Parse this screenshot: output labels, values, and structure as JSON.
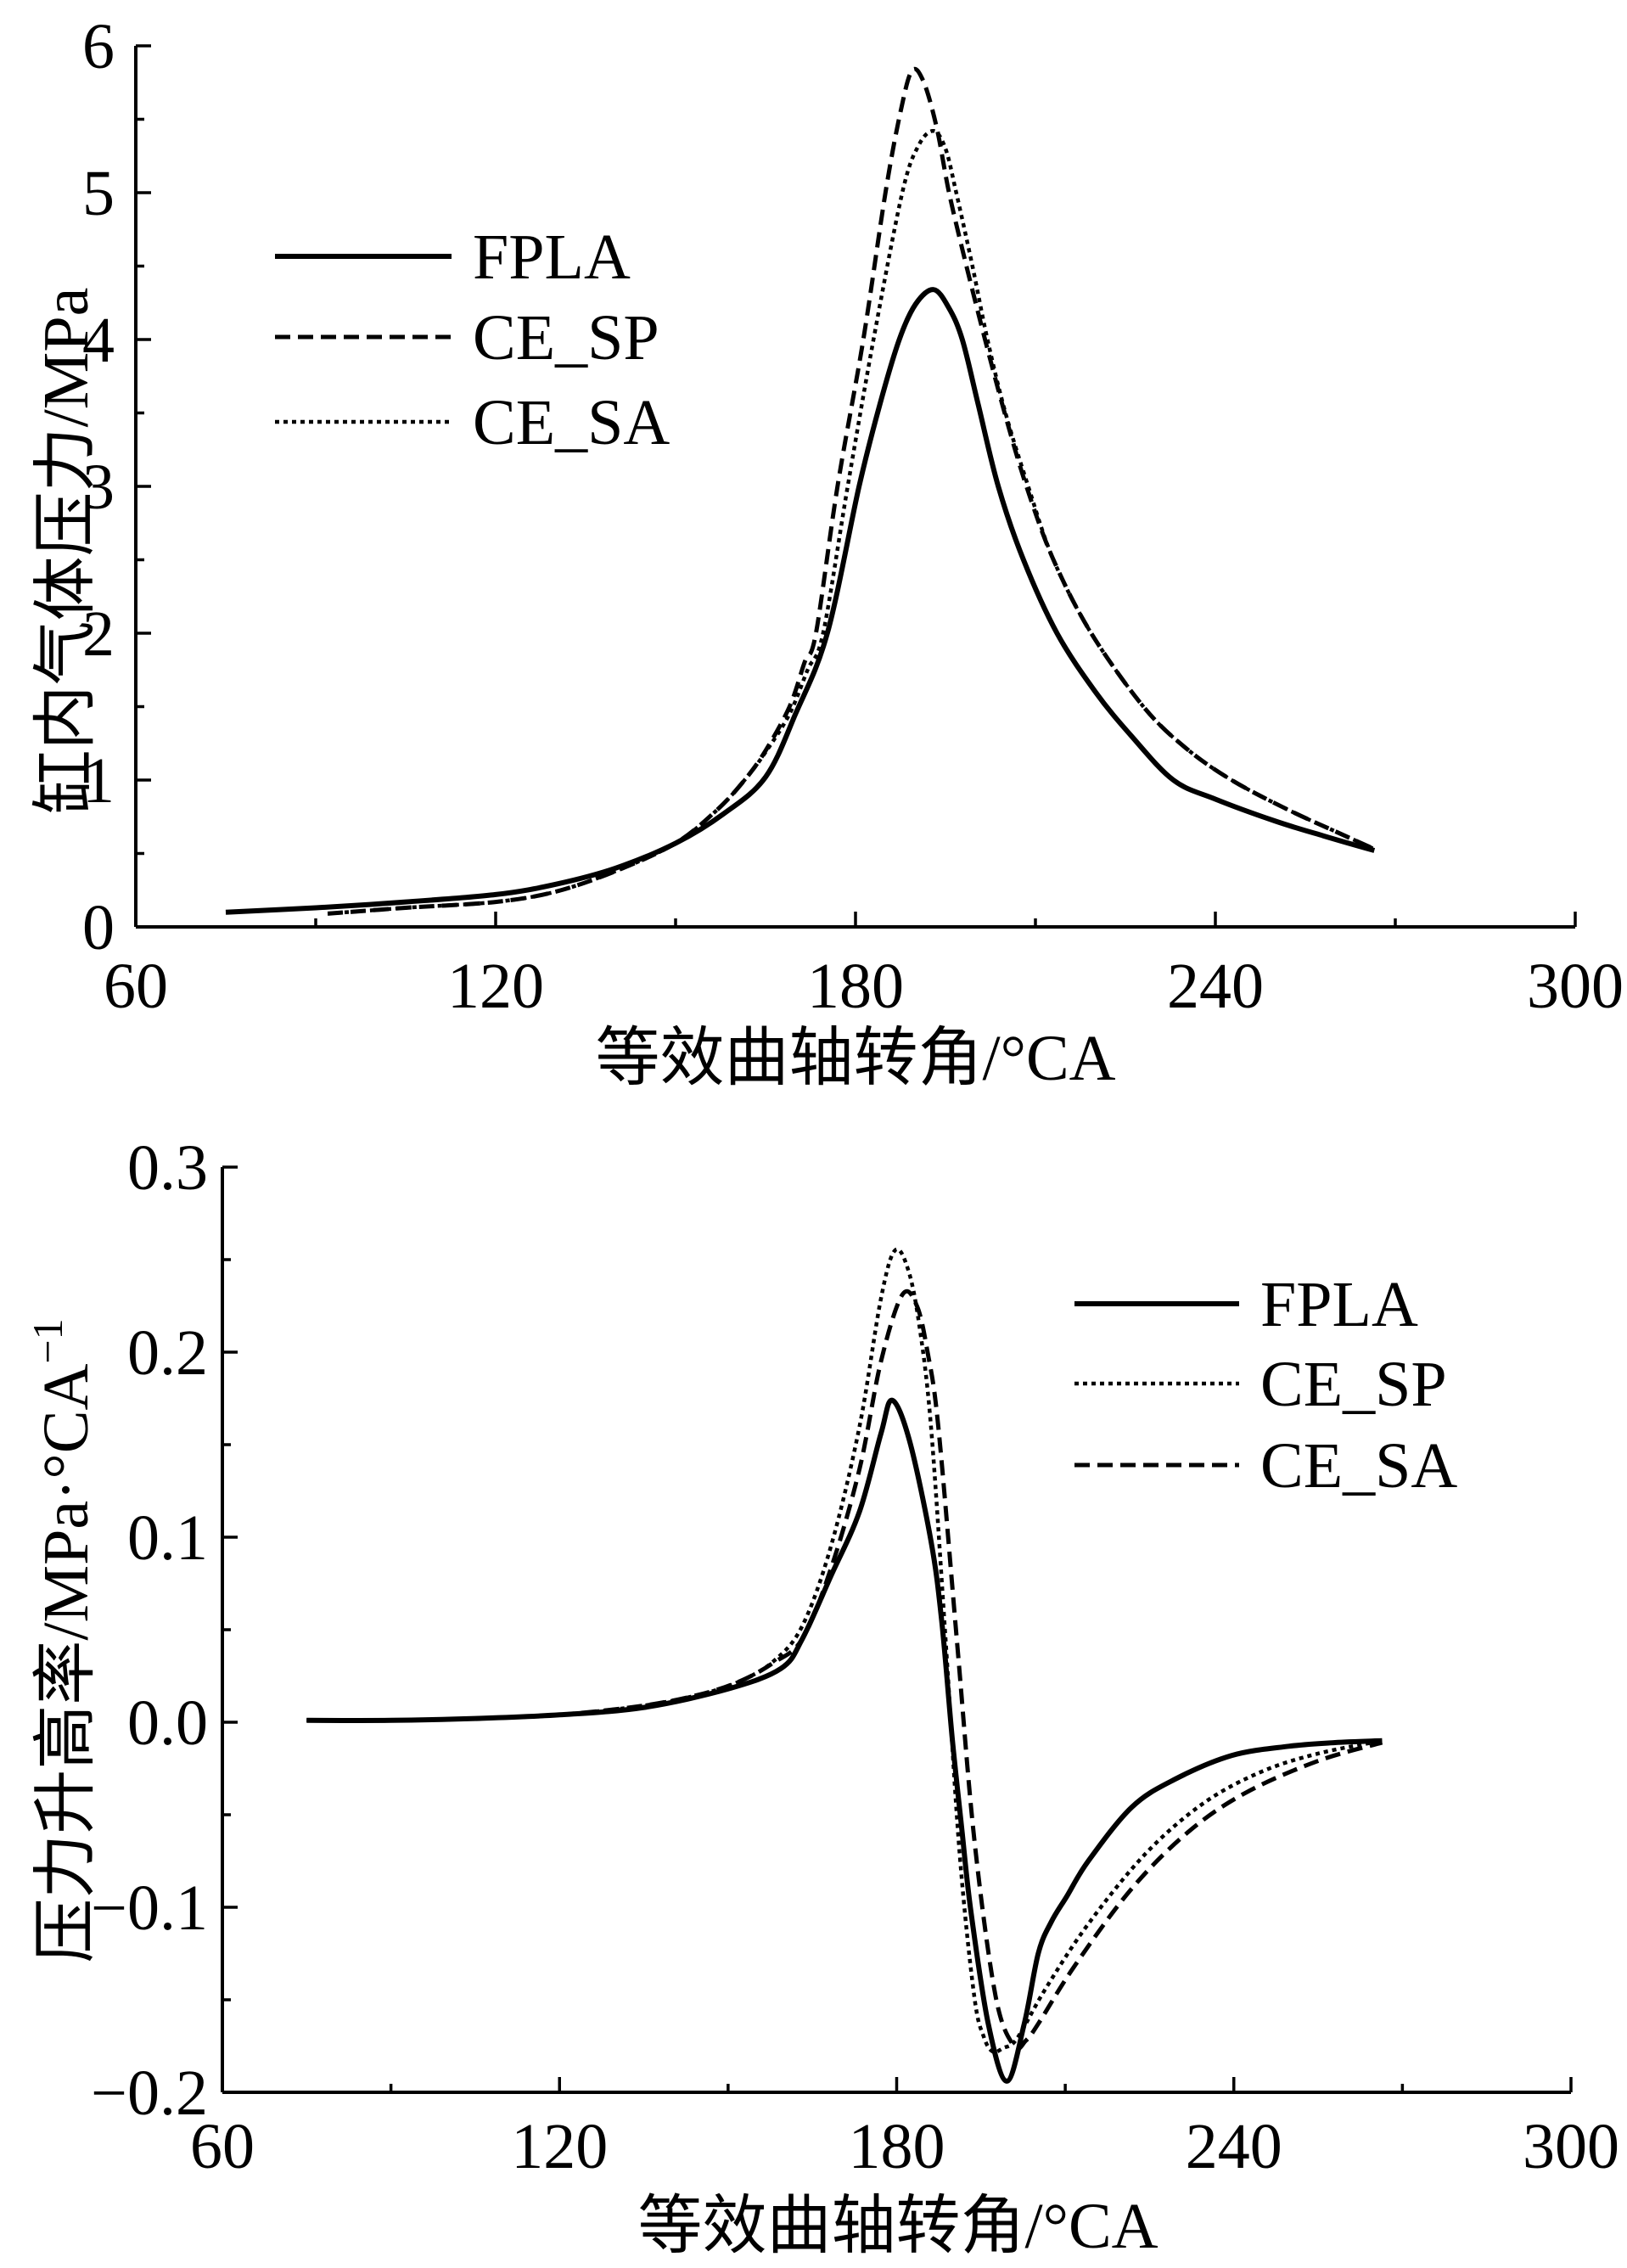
{
  "chart_data": [
    {
      "type": "line",
      "xlabel": "等效曲轴转角/°CA",
      "ylabel": "缸内气体压力/MPa",
      "xlim": [
        60,
        300
      ],
      "ylim": [
        0,
        6
      ],
      "xticks": [
        60,
        120,
        180,
        240,
        300
      ],
      "xtick_labels": [
        "60",
        "120",
        "180",
        "240",
        "300"
      ],
      "yticks": [
        0,
        1,
        2,
        3,
        4,
        5,
        6
      ],
      "ytick_labels": [
        "0",
        "1",
        "2",
        "3",
        "4",
        "5",
        "6"
      ],
      "grid": false,
      "legend": "upper-left",
      "series": [
        {
          "name": "FPLA",
          "style": "solid",
          "color": "#000000",
          "x": [
            75,
            90,
            105,
            120,
            130,
            140,
            150,
            158,
            165,
            170,
            175.3,
            180.6,
            184,
            187.3,
            190,
            193,
            195.5,
            197.8,
            200.5,
            203.8,
            208,
            213.6,
            220,
            226,
            233,
            240,
            250,
            258,
            266.5
          ],
          "y": [
            0.1,
            0.13,
            0.17,
            0.22,
            0.29,
            0.4,
            0.57,
            0.77,
            1.02,
            1.45,
            2.0,
            3.0,
            3.55,
            4.0,
            4.24,
            4.34,
            4.22,
            4.0,
            3.55,
            3.0,
            2.5,
            2.0,
            1.6,
            1.3,
            1.0,
            0.87,
            0.72,
            0.62,
            0.52
          ]
        },
        {
          "name": "CE_SP",
          "style": "dashed",
          "color": "#000000",
          "x": [
            92,
            105,
            120,
            130,
            140,
            150,
            157,
            161.5,
            165,
            169,
            171.5,
            173.4,
            177,
            181.3,
            185,
            187.5,
            189.4,
            191.3,
            193.5,
            195.6,
            198.5,
            201.6,
            205,
            208.5,
            213,
            219.3,
            228,
            235,
            242.7,
            252,
            260,
            266.5
          ],
          "y": [
            0.09,
            0.13,
            0.17,
            0.24,
            0.38,
            0.57,
            0.8,
            1.0,
            1.2,
            1.5,
            1.8,
            2.0,
            3.0,
            4.0,
            5.0,
            5.55,
            5.83,
            5.76,
            5.45,
            5.0,
            4.5,
            4.0,
            3.48,
            3.0,
            2.5,
            2.0,
            1.5,
            1.22,
            1.0,
            0.8,
            0.65,
            0.53
          ]
        },
        {
          "name": "CE_SA",
          "style": "dotted",
          "color": "#000000",
          "x": [
            92,
            105,
            120,
            130,
            140,
            150,
            157,
            161.5,
            165,
            169,
            172,
            174.6,
            178.7,
            183,
            187.8,
            190.5,
            193,
            195,
            196.8,
            199.5,
            202,
            205,
            208.8,
            213,
            219.3,
            228,
            235,
            242.7,
            252,
            260,
            266.5
          ],
          "y": [
            0.09,
            0.13,
            0.17,
            0.24,
            0.38,
            0.57,
            0.8,
            1.0,
            1.19,
            1.45,
            1.75,
            2.0,
            3.0,
            4.0,
            5.0,
            5.32,
            5.42,
            5.3,
            5.0,
            4.5,
            4.0,
            3.5,
            3.0,
            2.5,
            2.0,
            1.5,
            1.22,
            1.0,
            0.8,
            0.65,
            0.53
          ]
        }
      ]
    },
    {
      "type": "line",
      "xlabel": "等效曲轴转角/°CA",
      "ylabel": "压力升高率/MPa·°CA",
      "ylabel_superscript": "−1",
      "xlim": [
        60,
        300
      ],
      "ylim": [
        -0.2,
        0.3
      ],
      "xticks": [
        60,
        120,
        180,
        240,
        300
      ],
      "xtick_labels": [
        "60",
        "120",
        "180",
        "240",
        "300"
      ],
      "yticks": [
        -0.2,
        -0.1,
        0.0,
        0.1,
        0.2,
        0.3
      ],
      "ytick_labels": [
        "−0.2",
        "−0.1",
        "0.0",
        "0.1",
        "0.2",
        "0.3"
      ],
      "grid": false,
      "legend": "upper-right",
      "series": [
        {
          "name": "FPLA",
          "style": "solid",
          "color": "#000000",
          "x": [
            75,
            90,
            105,
            120,
            135,
            150,
            159.4,
            163.2,
            168.3,
            173.4,
            177.2,
            179.2,
            182.3,
            186.1,
            188,
            189.9,
            191.5,
            193.2,
            196.3,
            199.6,
            202.7,
            205.2,
            207.5,
            210.3,
            214.1,
            221.8,
            229.4,
            239.6,
            249.8,
            258,
            266.4
          ],
          "y": [
            0.001,
            0.001,
            0.002,
            0.004,
            0.008,
            0.018,
            0.029,
            0.045,
            0.079,
            0.114,
            0.156,
            0.174,
            0.152,
            0.098,
            0.055,
            -0.009,
            -0.055,
            -0.102,
            -0.163,
            -0.194,
            -0.163,
            -0.125,
            -0.108,
            -0.094,
            -0.075,
            -0.046,
            -0.031,
            -0.018,
            -0.013,
            -0.011,
            -0.01
          ]
        },
        {
          "name": "CE_SP",
          "style": "dotted",
          "color": "#000000",
          "x": [
            75,
            90,
            105,
            120,
            135,
            145,
            152,
            158.1,
            163.2,
            168.3,
            173.4,
            177.2,
            179.7,
            182,
            184,
            186.1,
            188.7,
            191.2,
            193.8,
            195.5,
            197.1,
            199,
            201.4,
            206.5,
            214.1,
            224.3,
            234.5,
            244.7,
            254.9,
            266.4
          ],
          "y": [
            0.001,
            0.001,
            0.002,
            0.004,
            0.009,
            0.015,
            0.022,
            0.033,
            0.052,
            0.095,
            0.16,
            0.229,
            0.255,
            0.245,
            0.215,
            0.16,
            0.045,
            -0.071,
            -0.148,
            -0.17,
            -0.178,
            -0.176,
            -0.171,
            -0.144,
            -0.109,
            -0.071,
            -0.044,
            -0.027,
            -0.017,
            -0.01
          ]
        },
        {
          "name": "CE_SA",
          "style": "dashed",
          "color": "#000000",
          "x": [
            75,
            90,
            105,
            120,
            135,
            145,
            152,
            158,
            163.2,
            168.3,
            173.4,
            177.2,
            181,
            183.6,
            185.5,
            187.4,
            190.7,
            193.8,
            197.6,
            200.9,
            203,
            205.2,
            211.6,
            221.8,
            232,
            242.2,
            254.9,
            266.4
          ],
          "y": [
            0.001,
            0.001,
            0.002,
            0.004,
            0.009,
            0.015,
            0.022,
            0.032,
            0.045,
            0.083,
            0.137,
            0.195,
            0.231,
            0.225,
            0.2,
            0.16,
            0.045,
            -0.063,
            -0.148,
            -0.175,
            -0.172,
            -0.163,
            -0.132,
            -0.09,
            -0.059,
            -0.038,
            -0.021,
            -0.011
          ]
        }
      ]
    }
  ]
}
